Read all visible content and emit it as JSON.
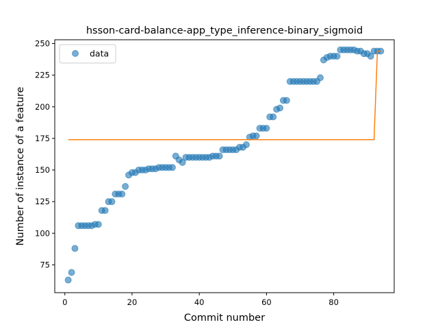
{
  "chart_data": {
    "type": "scatter",
    "title": "hsson-card-balance-app_type_inference-binary_sigmoid",
    "xlabel": "Commit number",
    "ylabel": "Number of instance of a feature",
    "xlim": [
      -3,
      98
    ],
    "ylim": [
      53,
      253
    ],
    "xticks": [
      0,
      20,
      40,
      60,
      80
    ],
    "yticks": [
      75,
      100,
      125,
      150,
      175,
      200,
      225,
      250
    ],
    "grid": false,
    "legend_position": "top-left",
    "legend": [
      "data"
    ],
    "colors": {
      "points": "#1f77b4",
      "fit": "#ff7f0e"
    },
    "series": [
      {
        "name": "data",
        "kind": "points",
        "x": [
          1,
          2,
          3,
          4,
          5,
          6,
          7,
          8,
          9,
          10,
          11,
          12,
          13,
          14,
          15,
          16,
          17,
          18,
          19,
          20,
          21,
          22,
          23,
          24,
          25,
          26,
          27,
          28,
          29,
          30,
          31,
          32,
          33,
          34,
          35,
          36,
          37,
          38,
          39,
          40,
          41,
          42,
          43,
          44,
          45,
          46,
          47,
          48,
          49,
          50,
          51,
          52,
          53,
          54,
          55,
          56,
          57,
          58,
          59,
          60,
          61,
          62,
          63,
          64,
          65,
          66,
          67,
          68,
          69,
          70,
          71,
          72,
          73,
          74,
          75,
          76,
          77,
          78,
          79,
          80,
          81,
          82,
          83,
          84,
          85,
          86,
          87,
          88,
          89,
          90,
          91,
          92,
          93,
          94
        ],
        "y": [
          63,
          69,
          88,
          106,
          106,
          106,
          106,
          106,
          107,
          107,
          118,
          118,
          125,
          125,
          131,
          131,
          131,
          137,
          146,
          148,
          148,
          150,
          150,
          150,
          151,
          151,
          151,
          152,
          152,
          152,
          152,
          152,
          161,
          158,
          156,
          160,
          160,
          160,
          160,
          160,
          160,
          160,
          160,
          161,
          161,
          161,
          166,
          166,
          166,
          166,
          166,
          168,
          168,
          170,
          176,
          177,
          177,
          183,
          183,
          183,
          192,
          192,
          198,
          199,
          205,
          205,
          220,
          220,
          220,
          220,
          220,
          220,
          220,
          220,
          220,
          223,
          237,
          239,
          240,
          240,
          240,
          245,
          245,
          245,
          245,
          245,
          244,
          244,
          242,
          242,
          240,
          244,
          244,
          244
        ]
      },
      {
        "kind": "line",
        "x": [
          1,
          92,
          93,
          94
        ],
        "y": [
          174,
          174,
          244,
          244
        ]
      }
    ]
  }
}
